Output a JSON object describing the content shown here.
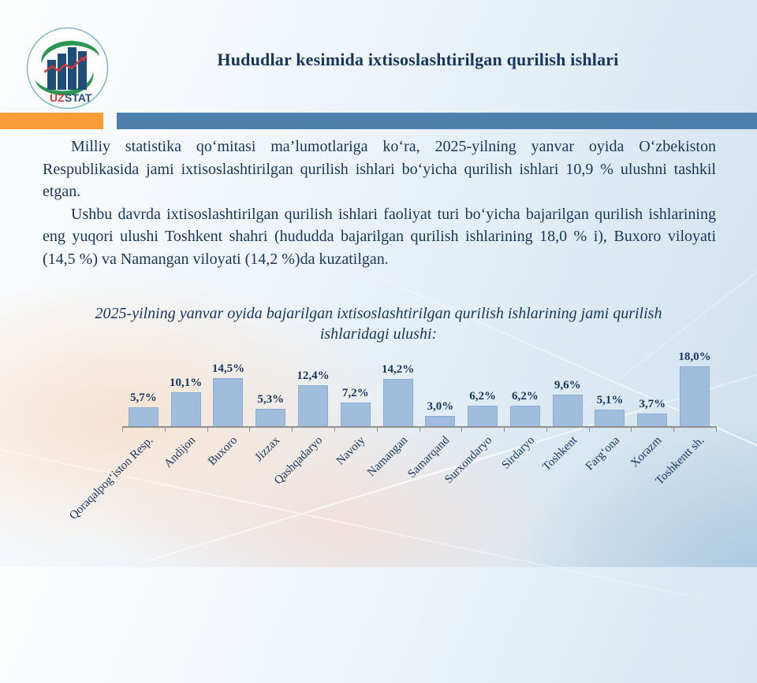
{
  "slide": {
    "title": "Hududlar kesimida ixtisoslashtirilgan qurilish ishlari",
    "logo": {
      "uz": "UZ",
      "stat": "STAT"
    },
    "paragraphs": [
      "Milliy statistika qo‘mitasi ma’lumotlariga ko‘ra, 2025-yilning yanvar oyida O‘zbekiston Respublikasida jami ixtisoslashtirilgan qurilish ishlari bo‘yicha qurilish ishlari 10,9 % ulushni tashkil etgan.",
      "Ushbu davrda ixtisoslashtirilgan qurilish ishlari faoliyat turi bo‘yicha bajarilgan qurilish ishlarining eng yuqori ulushi Toshkent shahri (hududda bajarilgan qurilish ishlarining 18,0 % i), Buxoro viloyati (14,5 %) va Namangan viloyati (14,2 %)da kuzatilgan."
    ],
    "colors": {
      "accent_orange": "#F99C38",
      "accent_blue": "#4D80AD",
      "text_navy": "#17365D"
    }
  },
  "chart_data": {
    "type": "bar",
    "title": "2025-yilning yanvar oyida bajarilgan ixtisoslashtirilgan qurilish ishlarining jami qurilish ishlaridagi ulushi:",
    "categories": [
      "Qoraqalpog‘iston Resp.",
      "Andijon",
      "Buxoro",
      "Jizzax",
      "Qashqadaryo",
      "Navoiy",
      "Namangan",
      "Samarqand",
      "Surxondaryo",
      "Sirdaryo",
      "Toshkent",
      "Farg‘ona",
      "Xorazm",
      "Toshkentt sh."
    ],
    "values": [
      5.7,
      10.1,
      14.5,
      5.3,
      12.4,
      7.2,
      14.2,
      3.0,
      6.2,
      6.2,
      9.6,
      5.1,
      3.7,
      18.0
    ],
    "value_labels": [
      "5,7%",
      "10,1%",
      "14,5%",
      "5,3%",
      "12,4%",
      "7,2%",
      "14,2%",
      "3,0%",
      "6,2%",
      "6,2%",
      "9,6%",
      "5,1%",
      "3,7%",
      "18,0%"
    ],
    "xlabel": "",
    "ylabel": "",
    "ylim": [
      0,
      19
    ],
    "grid": false,
    "legend": false,
    "bar_color": "#A0BDDE",
    "bar_border_color": "#8BADD3",
    "axis_color": "#8F8F8F",
    "label_color": "#17365D"
  }
}
